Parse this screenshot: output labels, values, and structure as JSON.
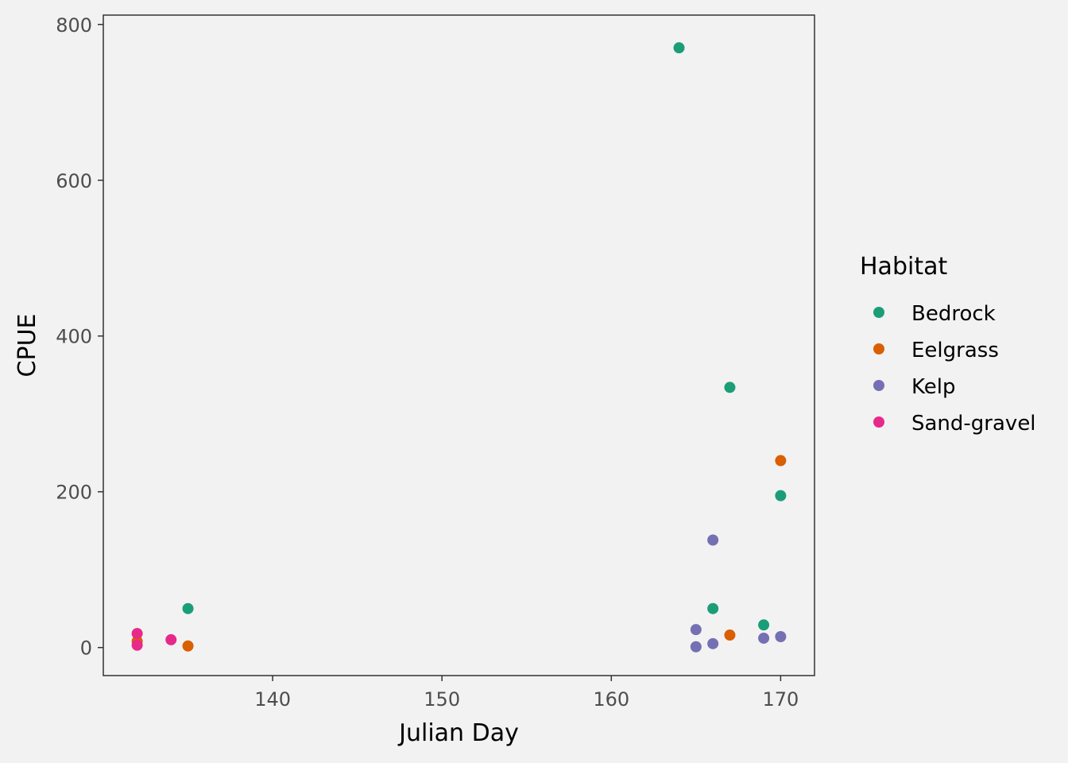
{
  "chart_data": {
    "type": "scatter",
    "title": "",
    "xlabel": "Julian Day",
    "ylabel": "CPUE",
    "xlim": [
      130,
      172
    ],
    "ylim": [
      -36,
      812
    ],
    "xticks": [
      140,
      150,
      160,
      170
    ],
    "yticks": [
      0,
      200,
      400,
      600,
      800
    ],
    "grid": false,
    "legend": {
      "title": "Habitat",
      "position": "right"
    },
    "series": [
      {
        "name": "Bedrock",
        "color": "#1b9e77",
        "points": [
          {
            "x": 135,
            "y": 50
          },
          {
            "x": 164,
            "y": 770
          },
          {
            "x": 166,
            "y": 50
          },
          {
            "x": 167,
            "y": 334
          },
          {
            "x": 169,
            "y": 29
          },
          {
            "x": 170,
            "y": 195
          }
        ]
      },
      {
        "name": "Eelgrass",
        "color": "#d95f02",
        "points": [
          {
            "x": 132,
            "y": 8
          },
          {
            "x": 135,
            "y": 2
          },
          {
            "x": 167,
            "y": 16
          },
          {
            "x": 170,
            "y": 240
          }
        ]
      },
      {
        "name": "Kelp",
        "color": "#7570b3",
        "points": [
          {
            "x": 165,
            "y": 23
          },
          {
            "x": 165,
            "y": 1
          },
          {
            "x": 166,
            "y": 138
          },
          {
            "x": 166,
            "y": 5
          },
          {
            "x": 169,
            "y": 12
          },
          {
            "x": 170,
            "y": 14
          }
        ]
      },
      {
        "name": "Sand-gravel",
        "color": "#e7298a",
        "points": [
          {
            "x": 132,
            "y": 18
          },
          {
            "x": 132,
            "y": 3
          },
          {
            "x": 134,
            "y": 10
          }
        ]
      }
    ]
  }
}
